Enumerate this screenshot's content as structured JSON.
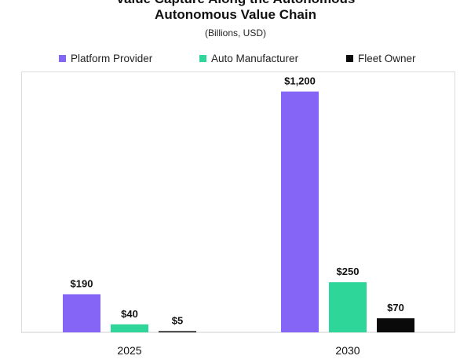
{
  "title": {
    "line1": "Value Capture Along the Autonomous",
    "line2": "Autonomous Value Chain"
  },
  "subtitle": "(Billions, USD)",
  "legend": [
    {
      "name": "Platform Provider",
      "color": "#8465f5"
    },
    {
      "name": "Auto Manufacturer",
      "color": "#2fd699"
    },
    {
      "name": "Fleet Owner",
      "color": "#0a0a0a"
    }
  ],
  "chart_data": {
    "type": "bar",
    "title": "Autonomous Value Chain",
    "subtitle": "(Billions, USD)",
    "categories": [
      "2025",
      "2030"
    ],
    "series": [
      {
        "name": "Platform Provider",
        "values": [
          190,
          1200
        ],
        "labels": [
          "$190",
          "$1,200"
        ],
        "color": "#8465f5"
      },
      {
        "name": "Auto Manufacturer",
        "values": [
          40,
          250
        ],
        "labels": [
          "$40",
          "$250"
        ],
        "color": "#2fd699"
      },
      {
        "name": "Fleet Owner",
        "values": [
          5,
          70
        ],
        "labels": [
          "$5",
          "$70"
        ],
        "color": "#0a0a0a"
      }
    ],
    "xlabel": "",
    "ylabel": "",
    "ylim": [
      0,
      1300
    ],
    "grid": false,
    "legend_position": "top"
  }
}
